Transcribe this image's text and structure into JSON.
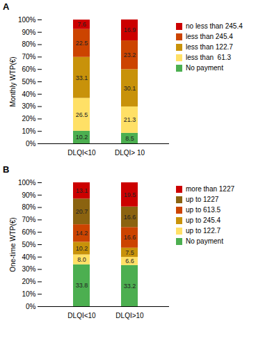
{
  "chart_data": [
    {
      "type": "bar",
      "stacked": true,
      "data_labels": true,
      "legend": "right",
      "title": "A",
      "ylabel": "Monthly WTP(€)",
      "categories": [
        "DLQI<10",
        "DLQI> 10"
      ],
      "series": [
        {
          "name": "No payment",
          "color": "#4caf50",
          "values": [
            10.2,
            8.5
          ]
        },
        {
          "name": "less than  61.3",
          "color": "#ffe066",
          "values": [
            26.5,
            21.3
          ]
        },
        {
          "name": "less than 122.7",
          "color": "#c8920a",
          "values": [
            33.1,
            30.1
          ]
        },
        {
          "name": "less than 245.4",
          "color": "#cc4400",
          "values": [
            22.5,
            23.2
          ]
        },
        {
          "name": "no less than 245.4",
          "color": "#cc0000",
          "values": [
            7.6,
            16.9
          ]
        }
      ],
      "ylim": [
        0,
        100
      ],
      "yticks": [
        {
          "value": 0,
          "label": "0%"
        },
        {
          "value": 10,
          "label": "10%"
        },
        {
          "value": 20,
          "label": "20%"
        },
        {
          "value": 30,
          "label": "30%"
        },
        {
          "value": 40,
          "label": "40%"
        },
        {
          "value": 50,
          "label": "50%"
        },
        {
          "value": 60,
          "label": "60%"
        },
        {
          "value": 70,
          "label": "70%"
        },
        {
          "value": 80,
          "label": "80%"
        },
        {
          "value": 90,
          "label": "90%"
        },
        {
          "value": 100,
          "label": "100%"
        }
      ]
    },
    {
      "type": "bar",
      "stacked": true,
      "data_labels": true,
      "legend": "right",
      "title": "B",
      "ylabel": "One-time WTP(€)",
      "categories": [
        "DLQI<10",
        "DLQI>10"
      ],
      "series": [
        {
          "name": "No payment",
          "color": "#4caf50",
          "values": [
            33.8,
            33.2
          ]
        },
        {
          "name": "up to 122.7",
          "color": "#ffe066",
          "values": [
            8.0,
            6.6
          ],
          "value_labels": [
            "8.0",
            "6.6"
          ]
        },
        {
          "name": "up to 245.4",
          "color": "#c8920a",
          "values": [
            10.2,
            7.5
          ]
        },
        {
          "name": "up to 613.5",
          "color": "#cc4400",
          "values": [
            14.2,
            16.6
          ]
        },
        {
          "name": "up to 1227",
          "color": "#8b6310",
          "values": [
            20.7,
            16.6
          ]
        },
        {
          "name": "more than 1227",
          "color": "#cc0000",
          "values": [
            13.1,
            19.5
          ]
        }
      ],
      "ylim": [
        0,
        100
      ],
      "yticks": [
        {
          "value": 0,
          "label": "0%"
        },
        {
          "value": 10,
          "label": "10%"
        },
        {
          "value": 20,
          "label": "20%"
        },
        {
          "value": 30,
          "label": "30%"
        },
        {
          "value": 40,
          "label": "40%"
        },
        {
          "value": 50,
          "label": "50%"
        },
        {
          "value": 60,
          "label": "60%"
        },
        {
          "value": 70,
          "label": "70%"
        },
        {
          "value": 80,
          "label": "80%"
        },
        {
          "value": 90,
          "label": "90%"
        },
        {
          "value": 100,
          "label": "100%"
        }
      ]
    }
  ]
}
